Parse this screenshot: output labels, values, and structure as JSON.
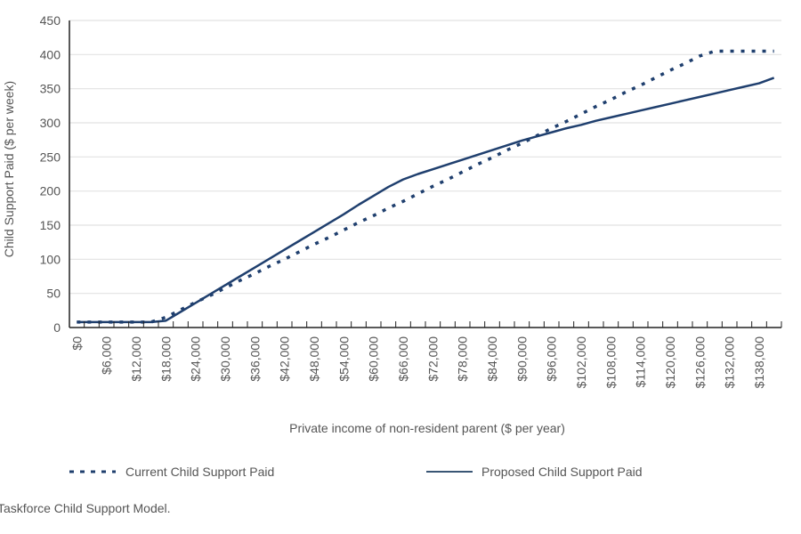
{
  "chart_data": {
    "type": "line",
    "title": "",
    "xlabel": "Private income of non-resident parent ($ per year)",
    "ylabel": "Child Support Paid ($ per week)",
    "ylim": [
      0,
      450
    ],
    "yticks": [
      0,
      50,
      100,
      150,
      200,
      250,
      300,
      350,
      400,
      450
    ],
    "grid": true,
    "legend": "bottom",
    "categories": [
      0,
      3000,
      6000,
      9000,
      12000,
      15000,
      18000,
      21000,
      24000,
      27000,
      30000,
      33000,
      36000,
      39000,
      42000,
      45000,
      48000,
      51000,
      54000,
      57000,
      60000,
      63000,
      66000,
      69000,
      72000,
      75000,
      78000,
      81000,
      84000,
      87000,
      90000,
      93000,
      96000,
      99000,
      102000,
      105000,
      108000,
      111000,
      114000,
      117000,
      120000,
      123000,
      126000,
      129000,
      132000,
      135000,
      138000,
      141000
    ],
    "tick_labels": [
      "$0",
      "$6,000",
      "$12,000",
      "$18,000",
      "$24,000",
      "$30,000",
      "$36,000",
      "$42,000",
      "$48,000",
      "$54,000",
      "$60,000",
      "$66,000",
      "$72,000",
      "$78,000",
      "$84,000",
      "$90,000",
      "$96,000",
      "$102,000",
      "$108,000",
      "$114,000",
      "$120,000",
      "$126,000",
      "$132,000",
      "$138,000"
    ],
    "series": [
      {
        "name": "Current Child Support Paid",
        "style": "dotted",
        "color": "#1f3f6e",
        "values": [
          8,
          8,
          8,
          8,
          8,
          8,
          15,
          26,
          37,
          47,
          58,
          69,
          79,
          90,
          100,
          111,
          122,
          132,
          143,
          154,
          164,
          175,
          185,
          196,
          207,
          217,
          228,
          239,
          249,
          260,
          270,
          281,
          292,
          302,
          313,
          324,
          334,
          345,
          355,
          366,
          377,
          387,
          398,
          405,
          405,
          405,
          405,
          405
        ]
      },
      {
        "name": "Proposed Child Support Paid",
        "style": "solid",
        "color": "#1f3f6e",
        "values": [
          8,
          8,
          8,
          8,
          8,
          8,
          10,
          23,
          36,
          49,
          62,
          75,
          88,
          101,
          114,
          127,
          140,
          153,
          166,
          180,
          193,
          206,
          217,
          225,
          232,
          239,
          246,
          253,
          260,
          267,
          274,
          280,
          286,
          292,
          297,
          303,
          308,
          313,
          318,
          323,
          328,
          333,
          338,
          343,
          348,
          353,
          358,
          366
        ]
      }
    ]
  },
  "source_note": "Taskforce Child Support Model."
}
